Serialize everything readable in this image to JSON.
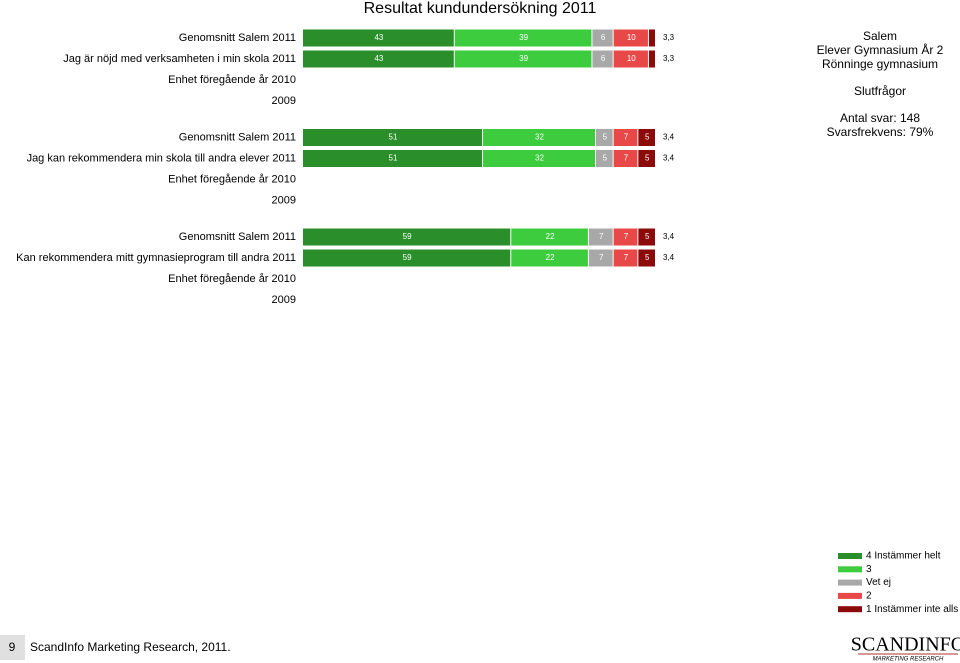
{
  "chart_data": {
    "type": "bar",
    "orientation": "horizontal",
    "stacked": true,
    "title": "Resultat kundundersökning 2011",
    "xlim": [
      0,
      100
    ],
    "categories": [
      "Genomsnitt Salem 2011",
      "Jag är nöjd med verksamheten i min skola 2011",
      "Enhet föregående år 2010",
      "2009",
      "Genomsnitt Salem 2011",
      "Jag kan rekommendera min skola till andra elever 2011",
      "Enhet föregående år 2010",
      "2009",
      "Genomsnitt Salem 2011",
      "Kan rekommendera mitt gymnasieprogram till andra 2011",
      "Enhet föregående år 2010",
      "2009"
    ],
    "series": [
      {
        "name": "4 Instämmer helt",
        "color": "#2a8f2a",
        "values": [
          43,
          43,
          null,
          null,
          51,
          51,
          null,
          null,
          59,
          59,
          null,
          null
        ]
      },
      {
        "name": "3",
        "color": "#3dcc3d",
        "values": [
          39,
          39,
          null,
          null,
          32,
          32,
          null,
          null,
          22,
          22,
          null,
          null
        ]
      },
      {
        "name": "Vet ej",
        "color": "#a8a8a8",
        "values": [
          6,
          6,
          null,
          null,
          5,
          5,
          null,
          null,
          7,
          7,
          null,
          null
        ]
      },
      {
        "name": "2",
        "color": "#e84848",
        "values": [
          10,
          10,
          null,
          null,
          7,
          7,
          null,
          null,
          7,
          7,
          null,
          null
        ]
      },
      {
        "name": "1 Instämmer inte alls",
        "color": "#8b0a0a",
        "values": [
          2,
          2,
          null,
          null,
          5,
          5,
          null,
          null,
          5,
          5,
          null,
          null
        ]
      }
    ],
    "means": [
      3.3,
      3.3,
      null,
      null,
      3.4,
      3.4,
      null,
      null,
      3.4,
      3.4,
      null,
      null
    ],
    "mean_labels": [
      "3,3",
      "3,3",
      null,
      null,
      "3,4",
      "3,4",
      null,
      null,
      "3,4",
      "3,4",
      null,
      null
    ]
  },
  "info": [
    "Salem",
    "Elever Gymnasium År 2",
    "Rönninge gymnasium",
    "Slutfrågor",
    "Antal svar: 148",
    "Svarsfrekvens: 79%"
  ],
  "footer": {
    "page": "9",
    "text": "ScandInfo Marketing Research, 2011.",
    "logo": "SCANDINFO",
    "logo_sub": "MARKETING RESEARCH"
  }
}
